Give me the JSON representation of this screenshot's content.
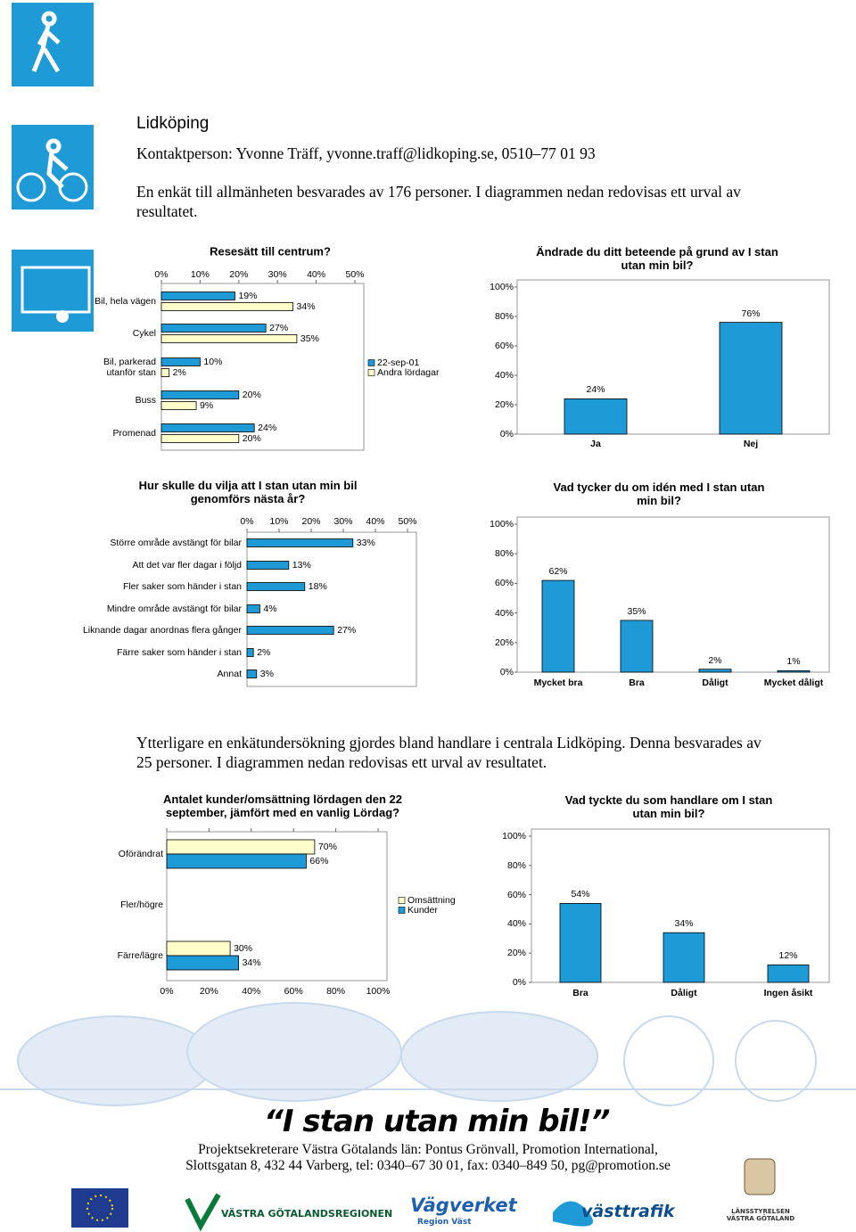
{
  "header": {
    "city": "Lidköping",
    "contact": "Kontaktperson: Yvonne Träff, yvonne.traff@lidkoping.se, 0510–77 01 93",
    "intro": "En enkät till allmänheten besvarades av 176 personer. I diagrammen nedan redovisas ett urval av resultatet."
  },
  "section2": {
    "text": "Ytterligare en enkätundersökning gjordes bland handlare i centrala Lidköping. Denna besvarades av 25 personer. I diagrammen nedan redovisas ett urval av resultatet."
  },
  "footer": {
    "slogan": "“I stan utan min bil!”",
    "lines": [
      "Projektsekreterare Västra Götalands län: Pontus Grönvall, Promotion International,",
      "Slottsgatan 8, 432 44 Varberg, tel: 0340–67 30 01, fax: 0340–849 50, pg@promotion.se"
    ],
    "logos": [
      "VÄSTRA GÖTALANDSREGIONEN",
      "Vägverket",
      "Region Väst",
      "västtrafik",
      "LÄNSSTYRELSEN VÄSTRA GÖTALAND"
    ]
  },
  "chart_data": [
    {
      "type": "barh",
      "title": "Resesätt till centrum?",
      "categories": [
        "Bil, hela vägen",
        "Cykel",
        "Bil, parkerad utanför stan",
        "Buss",
        "Promenad"
      ],
      "series": [
        {
          "name": "22-sep-01",
          "color": "#1e9ad6",
          "values": [
            19,
            27,
            10,
            20,
            24
          ],
          "value_labels": [
            "19%",
            "27%",
            "10%",
            "20%",
            "24%"
          ]
        },
        {
          "name": "Andra lördagar",
          "color": "#ffffcc",
          "values": [
            34,
            35,
            2,
            9,
            20
          ],
          "value_labels": [
            "34%",
            "35%",
            "2%",
            "9%",
            "20%"
          ]
        }
      ],
      "xlim": [
        0,
        50
      ],
      "xticks": [
        {
          "value": 0,
          "label": "0%"
        },
        {
          "value": 10,
          "label": "10%"
        },
        {
          "value": 20,
          "label": "20%"
        },
        {
          "value": 30,
          "label": "30%"
        },
        {
          "value": 40,
          "label": "40%"
        },
        {
          "value": 50,
          "label": "50%"
        }
      ],
      "legend": "right"
    },
    {
      "type": "bar",
      "title": "Ändrade du ditt beteende på grund av I stan utan min bil?",
      "categories": [
        "Ja",
        "Nej"
      ],
      "values": [
        24,
        76
      ],
      "value_labels": [
        "24%",
        "76%"
      ],
      "color": "#1e9ad6",
      "ylim": [
        0,
        100
      ],
      "yticks": [
        {
          "value": 0,
          "label": "0%"
        },
        {
          "value": 20,
          "label": "20%"
        },
        {
          "value": 40,
          "label": "40%"
        },
        {
          "value": 60,
          "label": "60%"
        },
        {
          "value": 80,
          "label": "80%"
        },
        {
          "value": 100,
          "label": "100%"
        }
      ]
    },
    {
      "type": "barh",
      "title": "Hur skulle du vilja att I stan utan min bil genomförs nästa år?",
      "categories": [
        "Större område avstängt för bilar",
        "Att det var fler dagar i följd",
        "Fler saker som händer i stan",
        "Mindre område avstängt för bilar",
        "Liknande dagar anordnas flera gånger",
        "Färre saker som händer i stan",
        "Annat"
      ],
      "values": [
        33,
        13,
        18,
        4,
        27,
        2,
        3
      ],
      "value_labels": [
        "33%",
        "13%",
        "18%",
        "4%",
        "27%",
        "2%",
        "3%"
      ],
      "color": "#1e9ad6",
      "xlim": [
        0,
        50
      ],
      "xticks": [
        {
          "value": 0,
          "label": "0%"
        },
        {
          "value": 10,
          "label": "10%"
        },
        {
          "value": 20,
          "label": "20%"
        },
        {
          "value": 30,
          "label": "30%"
        },
        {
          "value": 40,
          "label": "40%"
        },
        {
          "value": 50,
          "label": "50%"
        }
      ]
    },
    {
      "type": "bar",
      "title": "Vad tycker du om idén med I stan utan min bil?",
      "categories": [
        "Mycket bra",
        "Bra",
        "Dåligt",
        "Mycket dåligt"
      ],
      "values": [
        62,
        35,
        2,
        1
      ],
      "value_labels": [
        "62%",
        "35%",
        "2%",
        "1%"
      ],
      "color": "#1e9ad6",
      "ylim": [
        0,
        100
      ],
      "yticks": [
        {
          "value": 0,
          "label": "0%"
        },
        {
          "value": 20,
          "label": "20%"
        },
        {
          "value": 40,
          "label": "40%"
        },
        {
          "value": 60,
          "label": "60%"
        },
        {
          "value": 80,
          "label": "80%"
        },
        {
          "value": 100,
          "label": "100%"
        }
      ]
    },
    {
      "type": "barh",
      "title": "Antalet kunder/omsättning lördagen den 22 september, jämfört med en vanlig Lördag?",
      "categories": [
        "Oförändrat",
        "Fler/högre",
        "Färre/lägre"
      ],
      "series": [
        {
          "name": "Omsättning",
          "color": "#ffffcc",
          "values": [
            70,
            null,
            30
          ],
          "value_labels": [
            "70%",
            null,
            "30%"
          ]
        },
        {
          "name": "Kunder",
          "color": "#1e9ad6",
          "values": [
            66,
            null,
            34
          ],
          "value_labels": [
            "66%",
            null,
            "34%"
          ]
        }
      ],
      "xlim": [
        0,
        100
      ],
      "xticks": [
        {
          "value": 0,
          "label": "0%"
        },
        {
          "value": 20,
          "label": "20%"
        },
        {
          "value": 40,
          "label": "40%"
        },
        {
          "value": 60,
          "label": "60%"
        },
        {
          "value": 80,
          "label": "80%"
        },
        {
          "value": 100,
          "label": "100%"
        }
      ],
      "legend": "right"
    },
    {
      "type": "bar",
      "title": "Vad tyckte du som handlare om I stan utan min bil?",
      "categories": [
        "Bra",
        "Dåligt",
        "Ingen åsikt"
      ],
      "values": [
        54,
        34,
        12
      ],
      "value_labels": [
        "54%",
        "34%",
        "12%"
      ],
      "color": "#1e9ad6",
      "ylim": [
        0,
        100
      ],
      "yticks": [
        {
          "value": 0,
          "label": "0%"
        },
        {
          "value": 20,
          "label": "20%"
        },
        {
          "value": 40,
          "label": "40%"
        },
        {
          "value": 60,
          "label": "60%"
        },
        {
          "value": 80,
          "label": "80%"
        },
        {
          "value": 100,
          "label": "100%"
        }
      ]
    }
  ]
}
